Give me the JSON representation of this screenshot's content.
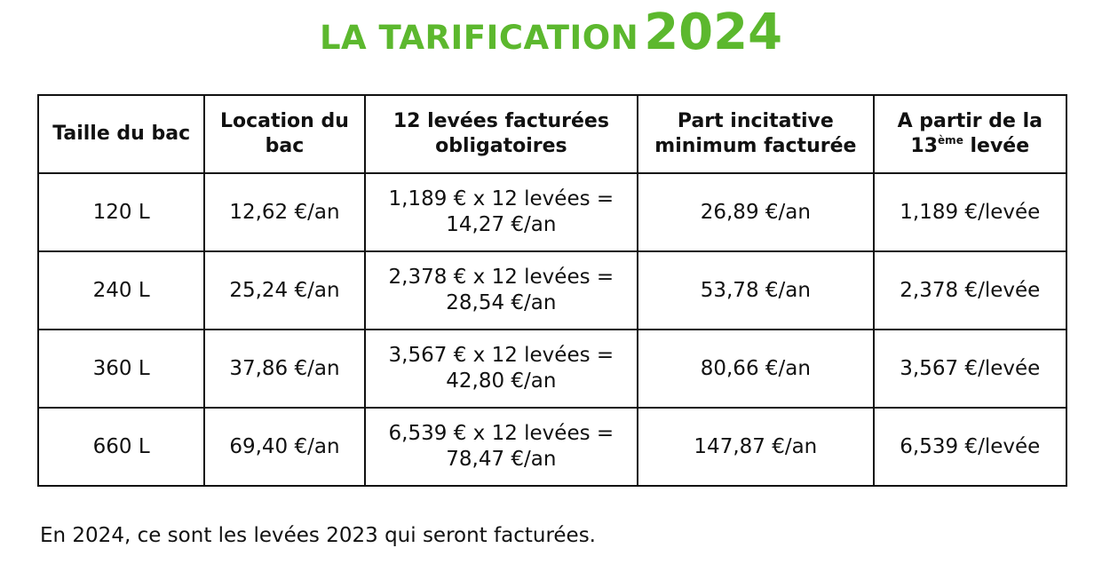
{
  "title": {
    "main": "LA TARIFICATION",
    "year": "2024",
    "color": "#5cb82e"
  },
  "table": {
    "headers": [
      {
        "line1": "Taille du bac",
        "line2": ""
      },
      {
        "line1": "Location du",
        "line2": "bac"
      },
      {
        "line1": "12 levées facturées",
        "line2": "obligatoires"
      },
      {
        "line1": "Part incitative",
        "line2": "minimum facturée"
      },
      {
        "line1": "A partir de la",
        "line2_prefix": "13",
        "line2_sup": "ème",
        "line2_suffix": " levée"
      }
    ],
    "rows": [
      {
        "size": "120 L",
        "location": "12,62 €/an",
        "levees_line1": "1,189 € x 12 levées =",
        "levees_line2": "14,27 €/an",
        "part": "26,89 €/an",
        "after13": "1,189 €/levée"
      },
      {
        "size": "240 L",
        "location": "25,24 €/an",
        "levees_line1": "2,378 € x 12 levées =",
        "levees_line2": "28,54 €/an",
        "part": "53,78 €/an",
        "after13": "2,378 €/levée"
      },
      {
        "size": "360 L",
        "location": "37,86 €/an",
        "levees_line1": "3,567 € x 12 levées =",
        "levees_line2": "42,80 €/an",
        "part": "80,66 €/an",
        "after13": "3,567 €/levée"
      },
      {
        "size": "660 L",
        "location": "69,40 €/an",
        "levees_line1": "6,539 € x 12 levées =",
        "levees_line2": "78,47 €/an",
        "part": "147,87 €/an",
        "after13": "6,539 €/levée"
      }
    ]
  },
  "note": "En 2024, ce sont les levées 2023 qui seront facturées."
}
